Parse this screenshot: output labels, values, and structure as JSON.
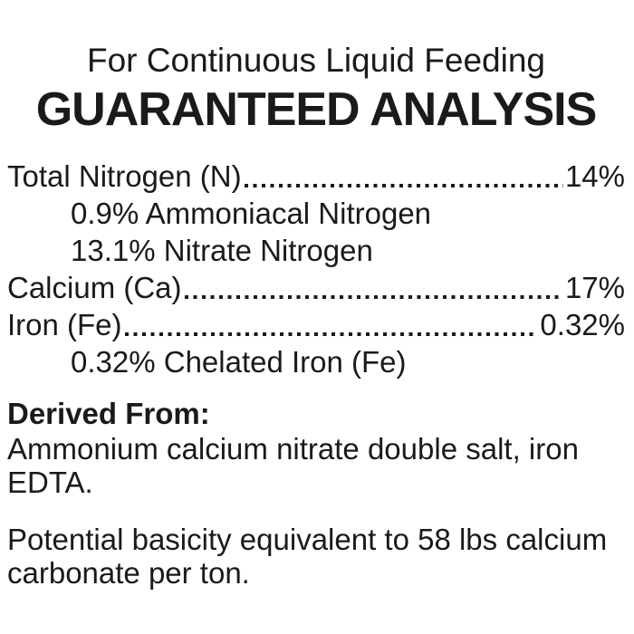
{
  "label": {
    "subtitle": "For Continuous Liquid Feeding",
    "title": "GUARANTEED ANALYSIS",
    "analysis": [
      {
        "name": "Total Nitrogen (N)",
        "value": "14%",
        "indent": false,
        "leader": true
      },
      {
        "name": "0.9% Ammoniacal Nitrogen",
        "value": "",
        "indent": true,
        "leader": false
      },
      {
        "name": "13.1% Nitrate Nitrogen",
        "value": "",
        "indent": true,
        "leader": false
      },
      {
        "name": "Calcium (Ca)",
        "value": "17%",
        "indent": false,
        "leader": true
      },
      {
        "name": "Iron (Fe)",
        "value": "0.32%",
        "indent": false,
        "leader": true
      },
      {
        "name": "0.32% Chelated Iron (Fe)",
        "value": "",
        "indent": true,
        "leader": false
      }
    ],
    "derived_from": {
      "heading": "Derived From:",
      "text": "Ammonium calcium nitrate double salt, iron EDTA."
    },
    "note": "Potential basicity equivalent to 58 lbs calcium carbonate per ton.",
    "text_color": "#1a1a1a",
    "background_color": "#ffffff"
  }
}
